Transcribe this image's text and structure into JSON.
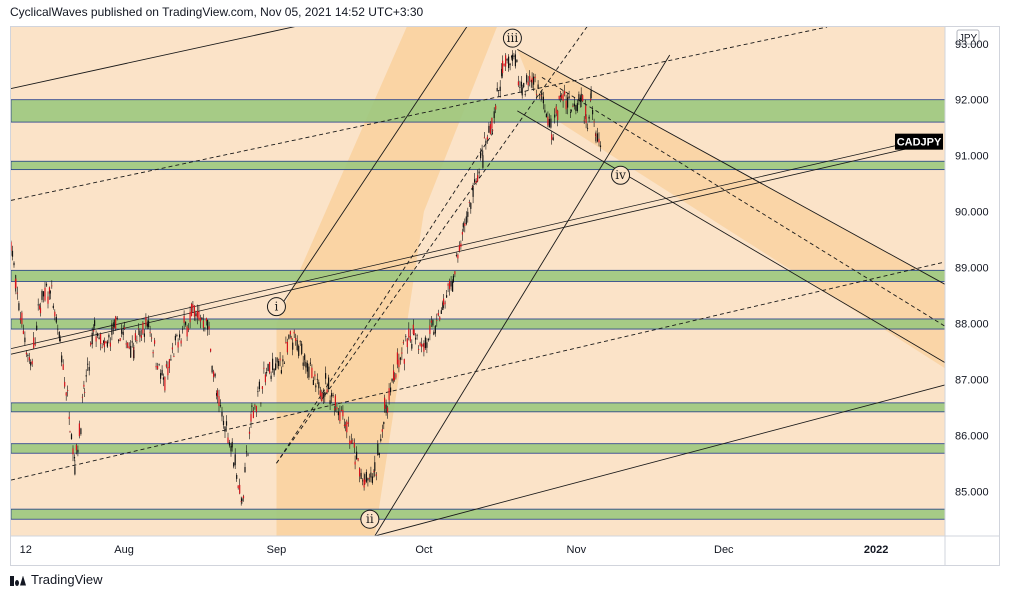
{
  "header": {
    "attribution": "CyclicalWaves published on TradingView.com, Nov 05, 2021 14:52 UTC+3:30"
  },
  "footer": {
    "brand": "TradingView"
  },
  "colors": {
    "background": "#fbe3c8",
    "channel_fill": "#f9cf98",
    "zone_fill": "#9cc87e",
    "zone_border": "#1e3a8a",
    "candle": "#d4141b",
    "wick": "#111111",
    "symbol_badge": "#000000"
  },
  "chart_data": {
    "type": "candlestick",
    "symbol": "CADJPY",
    "currency": "JPY",
    "y_axis": {
      "ticks": [
        85.0,
        86.0,
        87.0,
        88.0,
        89.0,
        90.0,
        91.0,
        92.0,
        93.0
      ],
      "tick_labels": [
        "85.000",
        "86.000",
        "87.000",
        "88.000",
        "89.000",
        "90.000",
        "91.000",
        "92.000",
        "93.000"
      ],
      "range": [
        84.2,
        93.3
      ],
      "last_value": 91.25
    },
    "x_axis": {
      "ticks": [
        {
          "label": "12",
          "date": "2021-07-12"
        },
        {
          "label": "Aug",
          "date": "2021-08-01"
        },
        {
          "label": "Sep",
          "date": "2021-09-01"
        },
        {
          "label": "Oct",
          "date": "2021-10-01"
        },
        {
          "label": "Nov",
          "date": "2021-11-01"
        },
        {
          "label": "Dec",
          "date": "2021-12-01"
        },
        {
          "label": "2022",
          "date": "2022-01-01"
        }
      ],
      "range": [
        "2021-07-09",
        "2022-01-15"
      ]
    },
    "wave_labels": [
      {
        "label": "i",
        "date": "2021-09-01",
        "price": 88.3
      },
      {
        "label": "ii",
        "date": "2021-09-20",
        "price": 84.5
      },
      {
        "label": "iii",
        "date": "2021-10-19",
        "price": 93.1
      },
      {
        "label": "iv",
        "date": "2021-11-10",
        "price": 90.65
      }
    ],
    "support_resistance_zones": [
      {
        "low": 91.6,
        "high": 92.0
      },
      {
        "low": 90.75,
        "high": 90.9
      },
      {
        "low": 88.75,
        "high": 88.95
      },
      {
        "low": 87.9,
        "high": 88.08
      },
      {
        "low": 86.42,
        "high": 86.58
      },
      {
        "low": 85.68,
        "high": 85.85
      },
      {
        "low": 84.5,
        "high": 84.68
      }
    ],
    "price_path": [
      [
        "2021-07-09",
        89.5
      ],
      [
        "2021-07-10",
        88.6
      ],
      [
        "2021-07-13",
        87.2
      ],
      [
        "2021-07-15",
        88.4
      ],
      [
        "2021-07-17",
        88.6
      ],
      [
        "2021-07-19",
        87.6
      ],
      [
        "2021-07-21",
        86.3
      ],
      [
        "2021-07-22",
        85.5
      ],
      [
        "2021-07-24",
        86.8
      ],
      [
        "2021-07-26",
        87.9
      ],
      [
        "2021-07-28",
        87.5
      ],
      [
        "2021-07-30",
        87.9
      ],
      [
        "2021-08-03",
        87.6
      ],
      [
        "2021-08-06",
        88.0
      ],
      [
        "2021-08-09",
        86.9
      ],
      [
        "2021-08-12",
        87.7
      ],
      [
        "2021-08-15",
        88.2
      ],
      [
        "2021-08-18",
        88.0
      ],
      [
        "2021-08-20",
        86.6
      ],
      [
        "2021-08-23",
        85.8
      ],
      [
        "2021-08-25",
        84.8
      ],
      [
        "2021-08-27",
        86.4
      ],
      [
        "2021-08-30",
        87.1
      ],
      [
        "2021-09-02",
        87.3
      ],
      [
        "2021-09-04",
        87.7
      ],
      [
        "2021-09-07",
        87.4
      ],
      [
        "2021-09-09",
        86.8
      ],
      [
        "2021-09-11",
        86.9
      ],
      [
        "2021-09-13",
        86.6
      ],
      [
        "2021-09-15",
        86.3
      ],
      [
        "2021-09-17",
        85.6
      ],
      [
        "2021-09-19",
        85.1
      ],
      [
        "2021-09-21",
        85.3
      ],
      [
        "2021-09-23",
        86.4
      ],
      [
        "2021-09-25",
        87.1
      ],
      [
        "2021-09-27",
        87.5
      ],
      [
        "2021-09-29",
        87.9
      ],
      [
        "2021-10-01",
        87.6
      ],
      [
        "2021-10-03",
        87.9
      ],
      [
        "2021-10-05",
        88.3
      ],
      [
        "2021-10-07",
        88.8
      ],
      [
        "2021-10-09",
        89.6
      ],
      [
        "2021-10-11",
        90.4
      ],
      [
        "2021-10-13",
        91.0
      ],
      [
        "2021-10-15",
        91.6
      ],
      [
        "2021-10-17",
        92.5
      ],
      [
        "2021-10-19",
        92.8
      ],
      [
        "2021-10-21",
        92.2
      ],
      [
        "2021-10-23",
        92.4
      ],
      [
        "2021-10-25",
        92.0
      ],
      [
        "2021-10-27",
        91.4
      ],
      [
        "2021-10-29",
        92.1
      ],
      [
        "2021-10-31",
        91.9
      ],
      [
        "2021-11-02",
        92.1
      ],
      [
        "2021-11-03",
        91.6
      ],
      [
        "2021-11-04",
        92.0
      ],
      [
        "2021-11-05",
        91.3
      ],
      [
        "2021-11-06",
        91.2
      ]
    ]
  }
}
